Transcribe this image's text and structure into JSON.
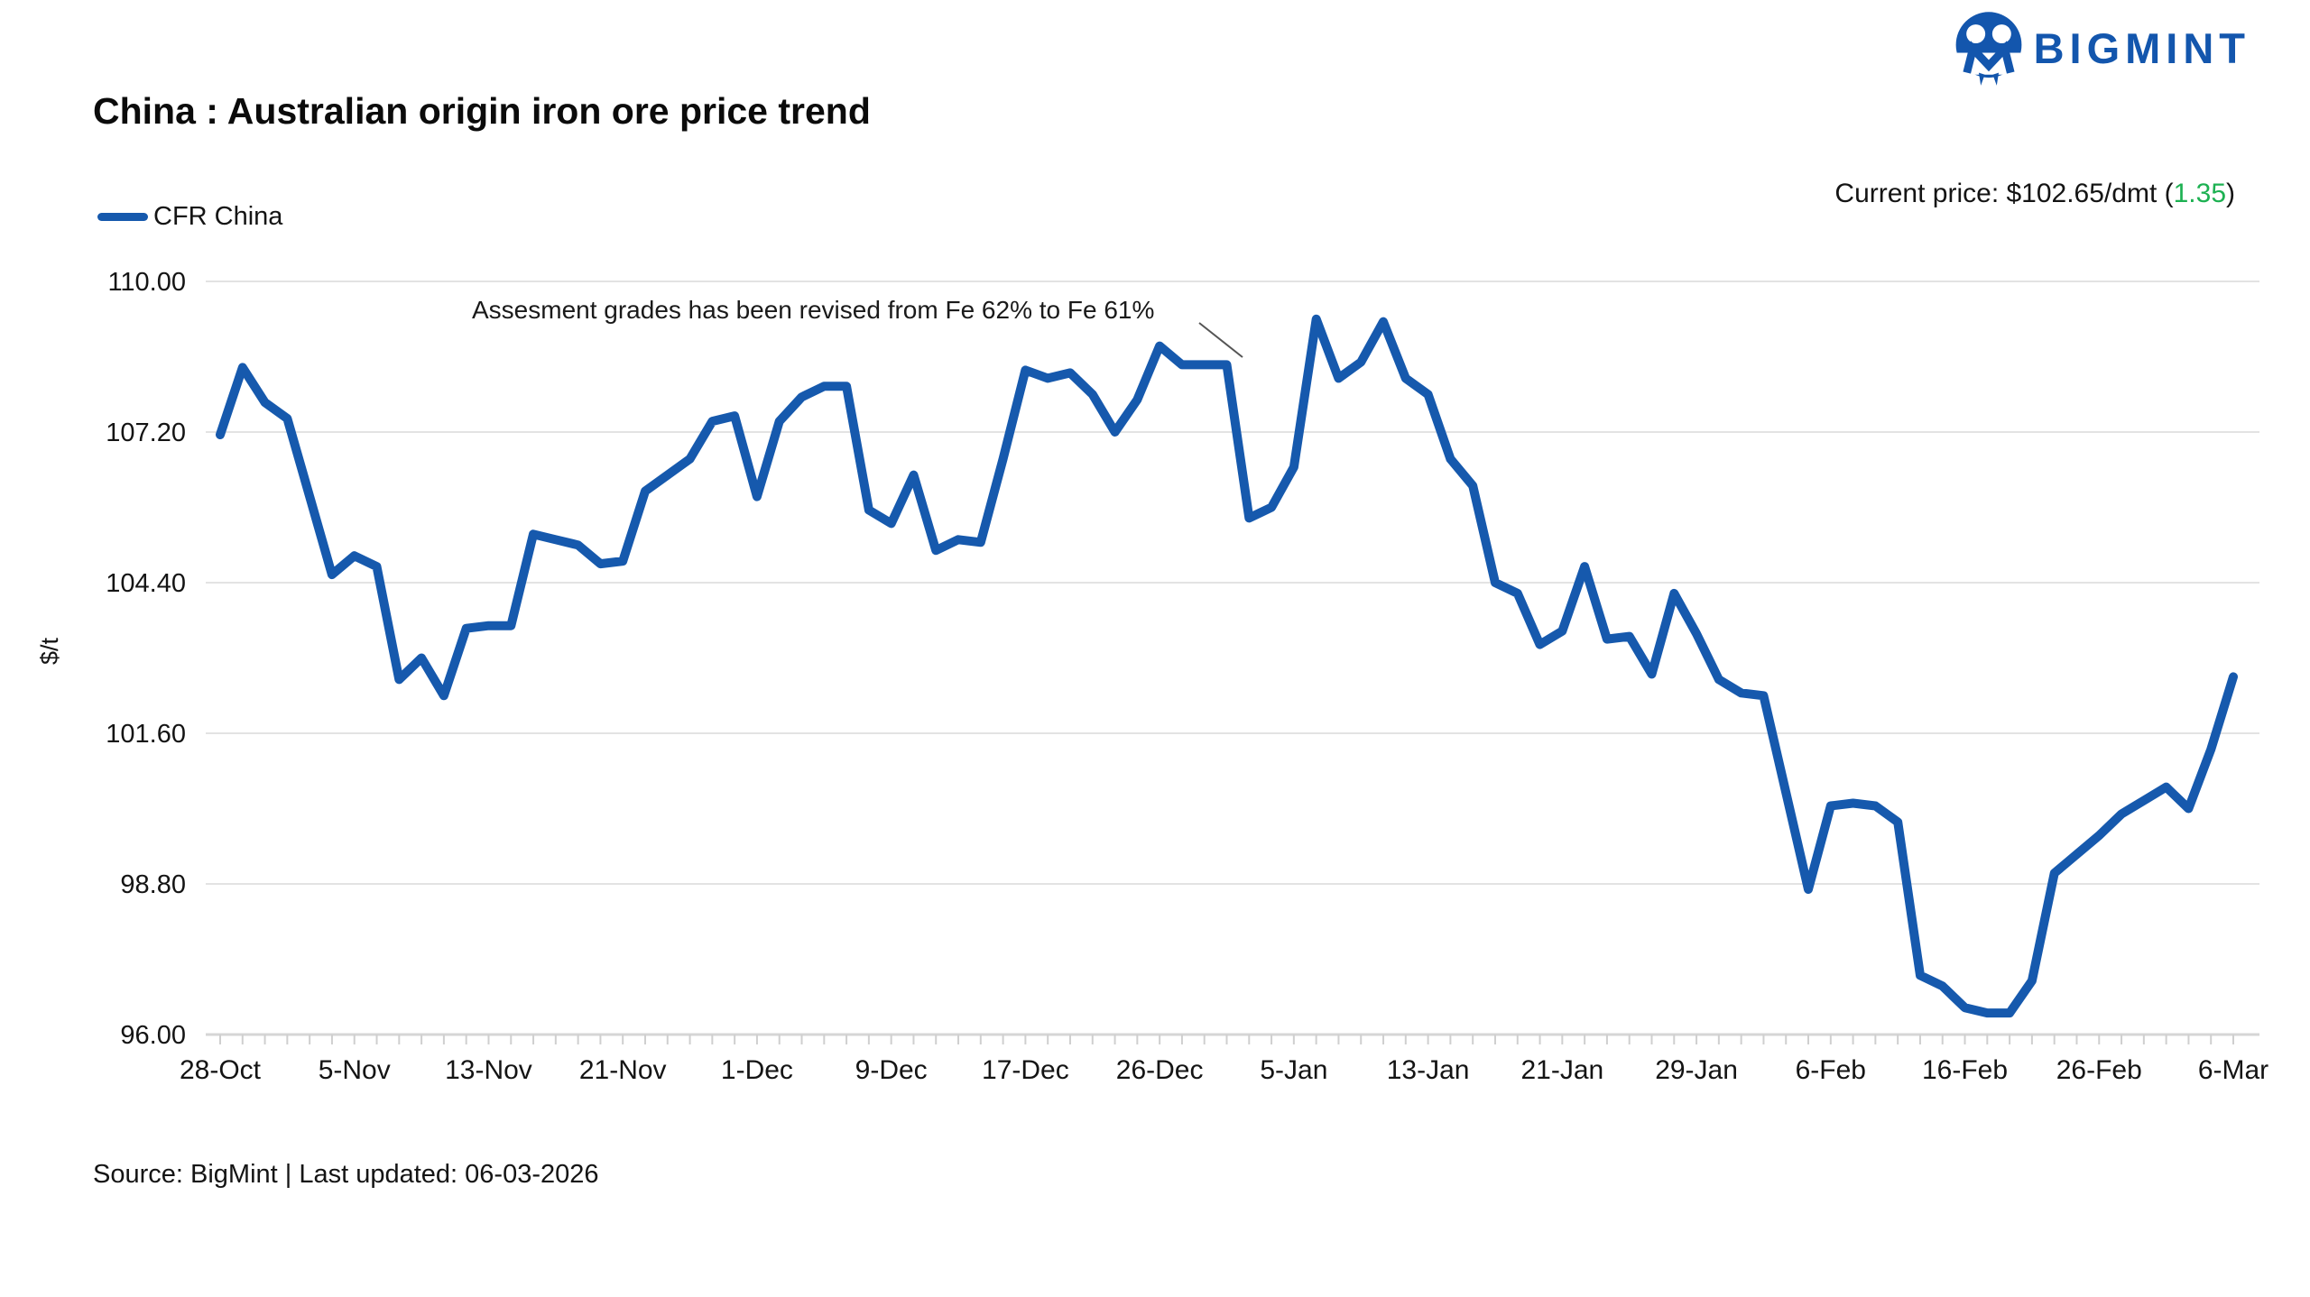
{
  "brand": {
    "name": "BIGMINT",
    "color": "#1356ad"
  },
  "header": {
    "title": "China : Australian origin iron ore price trend",
    "current_price_before": "Current price: $102.65/dmt (",
    "current_price_change": "1.35",
    "current_price_after": ")",
    "change_color": "#1db152"
  },
  "legend": {
    "label": "CFR China",
    "color": "#1659ad"
  },
  "source_note": "Source: BigMint | Last updated: 06-03-2026",
  "chart_data": {
    "type": "line",
    "title": "China : Australian origin iron ore price trend",
    "xlabel": "",
    "ylabel": "$/t",
    "ylim": [
      96.0,
      110.0
    ],
    "grid": "horizontal",
    "legend_position": "top-left",
    "annotation": {
      "text": "Assesment grades has been revised from Fe 62% to Fe 61%",
      "points_to": "31-Dec plateau at 108.45 before drop"
    },
    "x_tick_labels": [
      "28-Oct",
      "5-Nov",
      "13-Nov",
      "21-Nov",
      "1-Dec",
      "9-Dec",
      "17-Dec",
      "26-Dec",
      "5-Jan",
      "13-Jan",
      "21-Jan",
      "29-Jan",
      "6-Feb",
      "16-Feb",
      "26-Feb",
      "6-Mar"
    ],
    "points_per_tick_gap": 6,
    "y_ticks": [
      {
        "value": 110.0,
        "label": "110.00"
      },
      {
        "value": 107.2,
        "label": "107.20"
      },
      {
        "value": 104.4,
        "label": "104.40"
      },
      {
        "value": 101.6,
        "label": "101.60"
      },
      {
        "value": 98.8,
        "label": "98.80"
      },
      {
        "value": 96.0,
        "label": "96.00"
      }
    ],
    "series": [
      {
        "name": "CFR China",
        "color": "#1659ad",
        "values": [
          107.15,
          108.4,
          107.75,
          107.45,
          106.0,
          104.55,
          104.9,
          104.7,
          102.6,
          103.0,
          102.3,
          103.55,
          103.6,
          103.6,
          105.3,
          105.2,
          105.1,
          104.75,
          104.8,
          106.1,
          106.4,
          106.7,
          107.4,
          107.5,
          106.0,
          107.4,
          107.85,
          108.05,
          108.05,
          105.75,
          105.5,
          106.4,
          105.0,
          105.2,
          105.15,
          106.7,
          108.35,
          108.2,
          108.3,
          107.9,
          107.2,
          107.8,
          108.8,
          108.45,
          108.45,
          108.45,
          105.6,
          105.8,
          106.55,
          109.3,
          108.2,
          108.5,
          109.25,
          108.2,
          107.9,
          106.7,
          106.2,
          104.4,
          104.2,
          103.25,
          103.5,
          104.7,
          103.35,
          103.4,
          102.7,
          104.2,
          103.45,
          102.6,
          102.35,
          102.3,
          100.5,
          98.7,
          100.25,
          100.3,
          100.25,
          99.95,
          97.1,
          96.9,
          96.5,
          96.4,
          96.4,
          97.0,
          99.0,
          99.35,
          99.7,
          100.1,
          100.35,
          100.6,
          100.2,
          101.3,
          102.65
        ]
      }
    ]
  }
}
